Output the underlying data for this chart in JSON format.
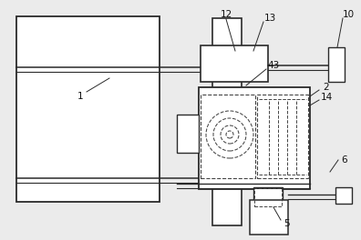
{
  "bg_color": "#ebebeb",
  "line_color": "#2a2a2a",
  "dashed_color": "#444444",
  "label_color": "#111111",
  "fig_w": 3.96,
  "fig_h": 2.64,
  "dpi": 100
}
